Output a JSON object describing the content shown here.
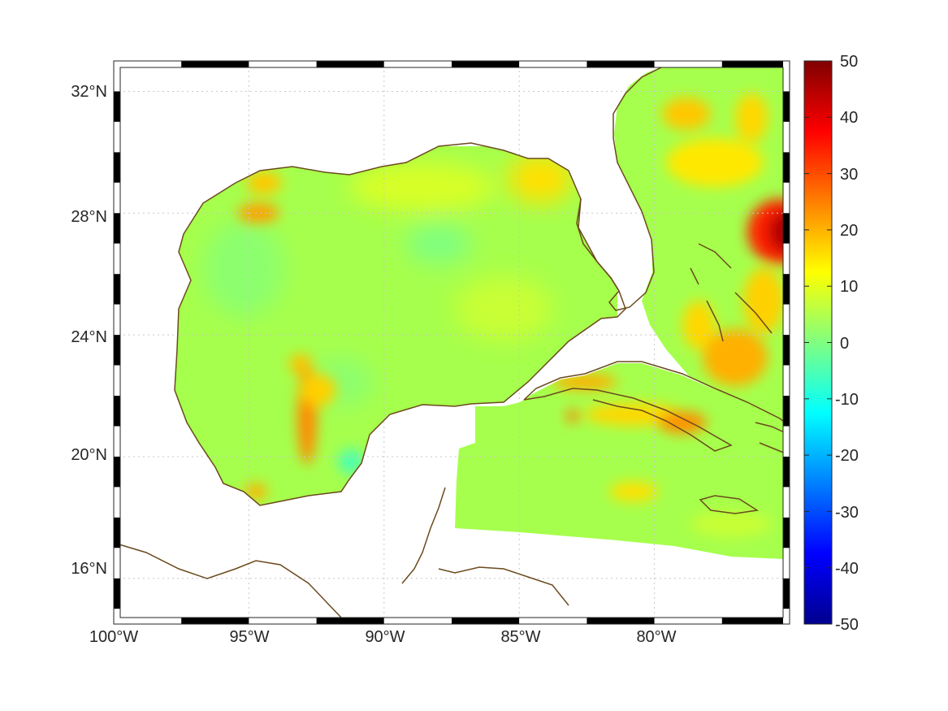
{
  "map": {
    "lat_labels": [
      "32°N",
      "28°N",
      "24°N",
      "20°N",
      "16°N"
    ],
    "lat_values": [
      32,
      28,
      24,
      20,
      16
    ],
    "lon_labels": [
      "100°W",
      "95°W",
      "90°W",
      "85°W",
      "80°W"
    ],
    "lon_values": [
      -100,
      -95,
      -90,
      -85,
      -80
    ],
    "extent": {
      "lon": [
        -100,
        -75
      ],
      "lat": [
        14.5,
        33
      ]
    },
    "graticule": "dotted",
    "coastline_color": "#6b4a1e",
    "frame": "black-white striped border"
  },
  "colorbar": {
    "tick_labels": [
      "50",
      "40",
      "30",
      "20",
      "10",
      "0",
      "-10",
      "-20",
      "-30",
      "-40",
      "-50"
    ],
    "range": [
      -50,
      50
    ],
    "colormap": "jet",
    "position": "right"
  }
}
